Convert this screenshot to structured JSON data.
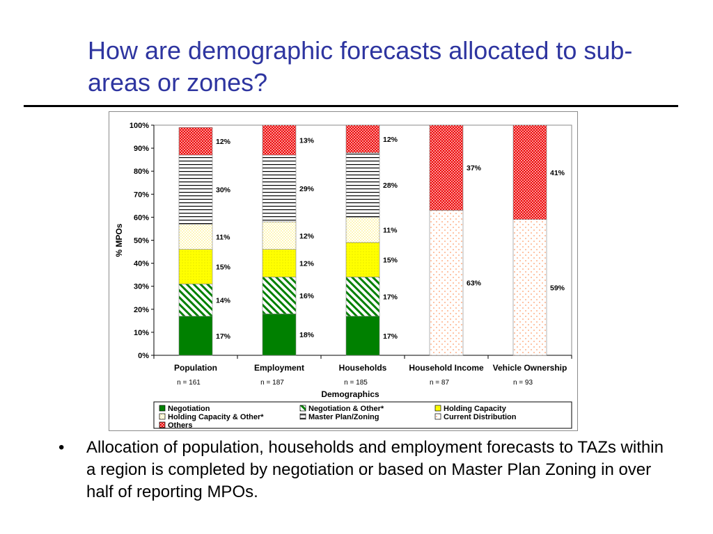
{
  "slide": {
    "title": "How are demographic forecasts allocated to sub-areas or zones?",
    "bullet_glyph": "•",
    "bullet_text": "Allocation of population, households and employment forecasts to TAZs within a region is completed by negotiation or based on Master Plan Zoning in over half of reporting MPOs."
  },
  "chart_data": {
    "type": "bar",
    "stacked": true,
    "categories": [
      "Population",
      "Employment",
      "Households",
      "Household Income",
      "Vehicle Ownership"
    ],
    "category_notes": [
      "n = 161",
      "n = 187",
      "n = 185",
      "n = 87",
      "n = 93"
    ],
    "xlabel": "Demographics",
    "ylabel": "% MPOs",
    "ylim": [
      0,
      100
    ],
    "yticks": [
      "0%",
      "10%",
      "20%",
      "30%",
      "40%",
      "50%",
      "60%",
      "70%",
      "80%",
      "90%",
      "100%"
    ],
    "legend_position": "bottom",
    "series": [
      {
        "name": "Negotiation",
        "pattern": "solid",
        "color": "#008000",
        "values": [
          17,
          18,
          17,
          0,
          0
        ],
        "labels": [
          "17%",
          "18%",
          "17%",
          "",
          ""
        ]
      },
      {
        "name": "Negotiation & Other*",
        "pattern": "diagonal-stripes",
        "color": "#008000",
        "values": [
          14,
          16,
          17,
          0,
          0
        ],
        "labels": [
          "14%",
          "16%",
          "17%",
          "",
          ""
        ]
      },
      {
        "name": "Holding Capacity",
        "pattern": "yellow-dots",
        "color": "#FFFF00",
        "values": [
          15,
          12,
          15,
          0,
          0
        ],
        "labels": [
          "15%",
          "12%",
          "15%",
          "",
          ""
        ]
      },
      {
        "name": "Holding Capacity & Other*",
        "pattern": "light-yellow-dots",
        "color": "#FFFF99",
        "values": [
          11,
          12,
          11,
          0,
          0
        ],
        "labels": [
          "11%",
          "12%",
          "11%",
          "",
          ""
        ]
      },
      {
        "name": "Master Plan/Zoning",
        "pattern": "horizontal-lines",
        "color": "#000000",
        "values": [
          30,
          29,
          28,
          0,
          0
        ],
        "labels": [
          "30%",
          "29%",
          "28%",
          "",
          ""
        ]
      },
      {
        "name": "Current Distribution",
        "pattern": "orange-dots",
        "color": "#FF9966",
        "values": [
          0,
          0,
          0,
          63,
          59
        ],
        "labels": [
          "",
          "",
          "",
          "63%",
          "59%"
        ]
      },
      {
        "name": "Others",
        "pattern": "red-crosshatch",
        "color": "#FF0000",
        "values": [
          12,
          13,
          12,
          37,
          41
        ],
        "labels": [
          "12%",
          "13%",
          "12%",
          "37%",
          "41%"
        ]
      }
    ],
    "colors": {
      "axis": "#000000",
      "frame": "#8a8a8a",
      "title": "#2E35A0"
    }
  }
}
